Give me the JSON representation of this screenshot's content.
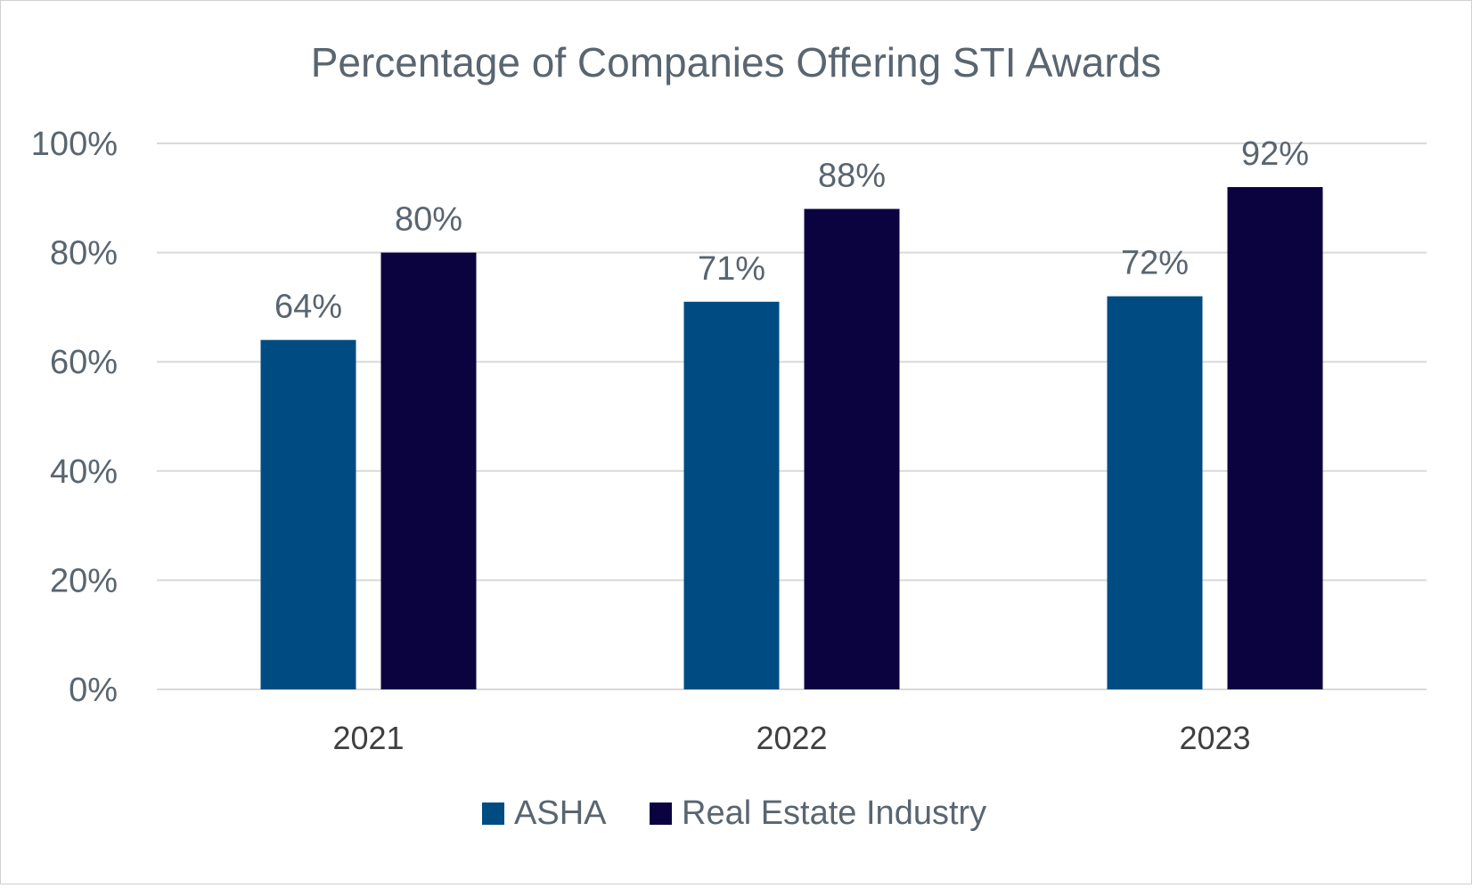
{
  "chart_data": {
    "type": "bar",
    "title": "Percentage of Companies Offering STI Awards",
    "xlabel": "",
    "ylabel": "",
    "categories": [
      "2021",
      "2022",
      "2023"
    ],
    "series": [
      {
        "name": "ASHA",
        "values": [
          64,
          71,
          72
        ],
        "labels": [
          "64%",
          "71%",
          "72%"
        ],
        "color": "#004c82"
      },
      {
        "name": "Real Estate Industry",
        "values": [
          80,
          88,
          92
        ],
        "labels": [
          "80%",
          "88%",
          "92%"
        ],
        "color": "#0b0340"
      }
    ],
    "ylim": [
      0,
      100
    ],
    "yticks": [
      0,
      20,
      40,
      60,
      80,
      100
    ],
    "ytick_labels": [
      "0%",
      "20%",
      "40%",
      "60%",
      "80%",
      "100%"
    ],
    "grid": true,
    "legend": "bottom",
    "colors": {
      "text": "#596570",
      "grid": "#d9d9d9"
    }
  }
}
